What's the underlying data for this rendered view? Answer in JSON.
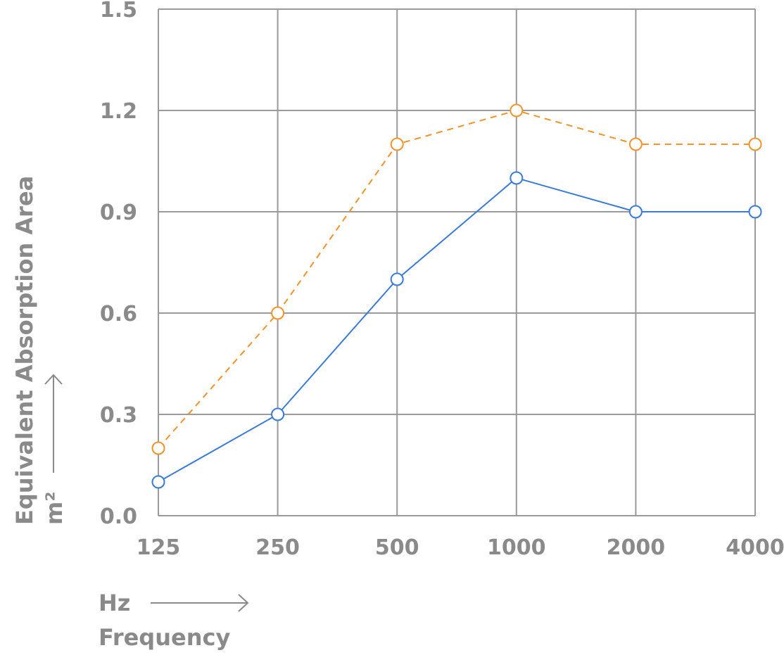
{
  "chart_data": {
    "type": "line",
    "categories": [
      "125",
      "250",
      "500",
      "1000",
      "2000",
      "4000"
    ],
    "series": [
      {
        "values": [
          0.1,
          0.3,
          0.7,
          1.0,
          0.9,
          0.9
        ],
        "color": "#3a7bd5",
        "line_style": "solid",
        "marker": "open-circle"
      },
      {
        "values": [
          0.2,
          0.6,
          1.1,
          1.2,
          1.1,
          1.1
        ],
        "color": "#f0932b",
        "line_style": "dashed",
        "marker": "open-circle"
      }
    ],
    "y_ticks": [
      "0.0",
      "0.3",
      "0.6",
      "0.9",
      "1.2",
      "1.5"
    ],
    "ylim": [
      0,
      1.5
    ],
    "grid": true,
    "xunit": "Hz",
    "xlabel": "Frequency",
    "yunit": "m²",
    "ylabel": "Equivalent Absorption Area"
  },
  "colors": {
    "grid": "#9a9a9a",
    "text": "#8a8a8a"
  }
}
